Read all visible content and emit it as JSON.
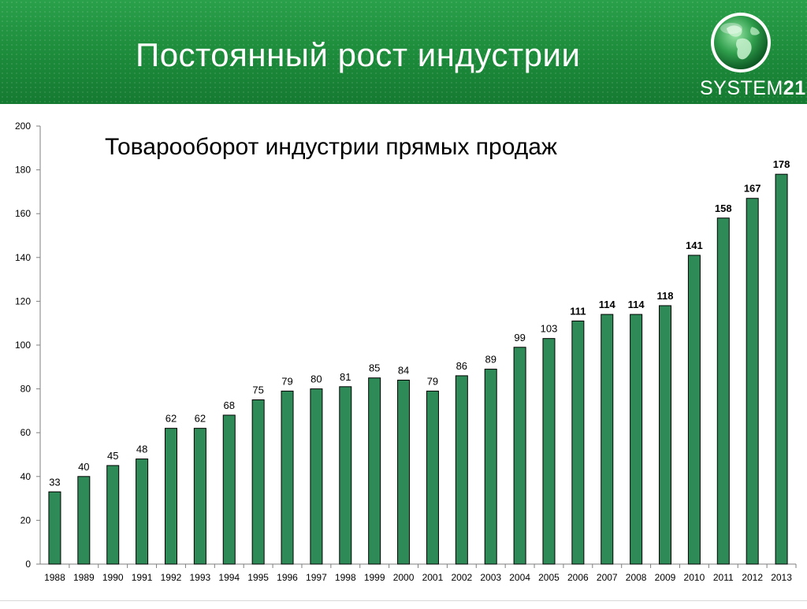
{
  "slide": {
    "title": "Постоянный рост индустрии",
    "logo_text": "SYSTEM",
    "logo_num": "21",
    "accent": "#1e8a3c",
    "bar_color": "#2e8b57",
    "globe_icon": "globe-icon"
  },
  "chart_data": {
    "type": "bar",
    "title": "Товарооборот индустрии прямых продаж",
    "xlabel": "",
    "ylabel": "",
    "ylim": [
      0,
      200
    ],
    "ytick_step": 20,
    "grid": false,
    "categories": [
      "1988",
      "1989",
      "1990",
      "1991",
      "1992",
      "1993",
      "1994",
      "1995",
      "1996",
      "1997",
      "1998",
      "1999",
      "2000",
      "2001",
      "2002",
      "2003",
      "2004",
      "2005",
      "2006",
      "2007",
      "2008",
      "2009",
      "2010",
      "2011",
      "2012",
      "2013"
    ],
    "values": [
      33,
      40,
      45,
      48,
      62,
      62,
      68,
      75,
      79,
      80,
      81,
      85,
      84,
      79,
      86,
      89,
      99,
      103,
      111,
      114,
      114,
      118,
      141,
      158,
      167,
      178
    ],
    "bold_labels_from": "2006"
  }
}
